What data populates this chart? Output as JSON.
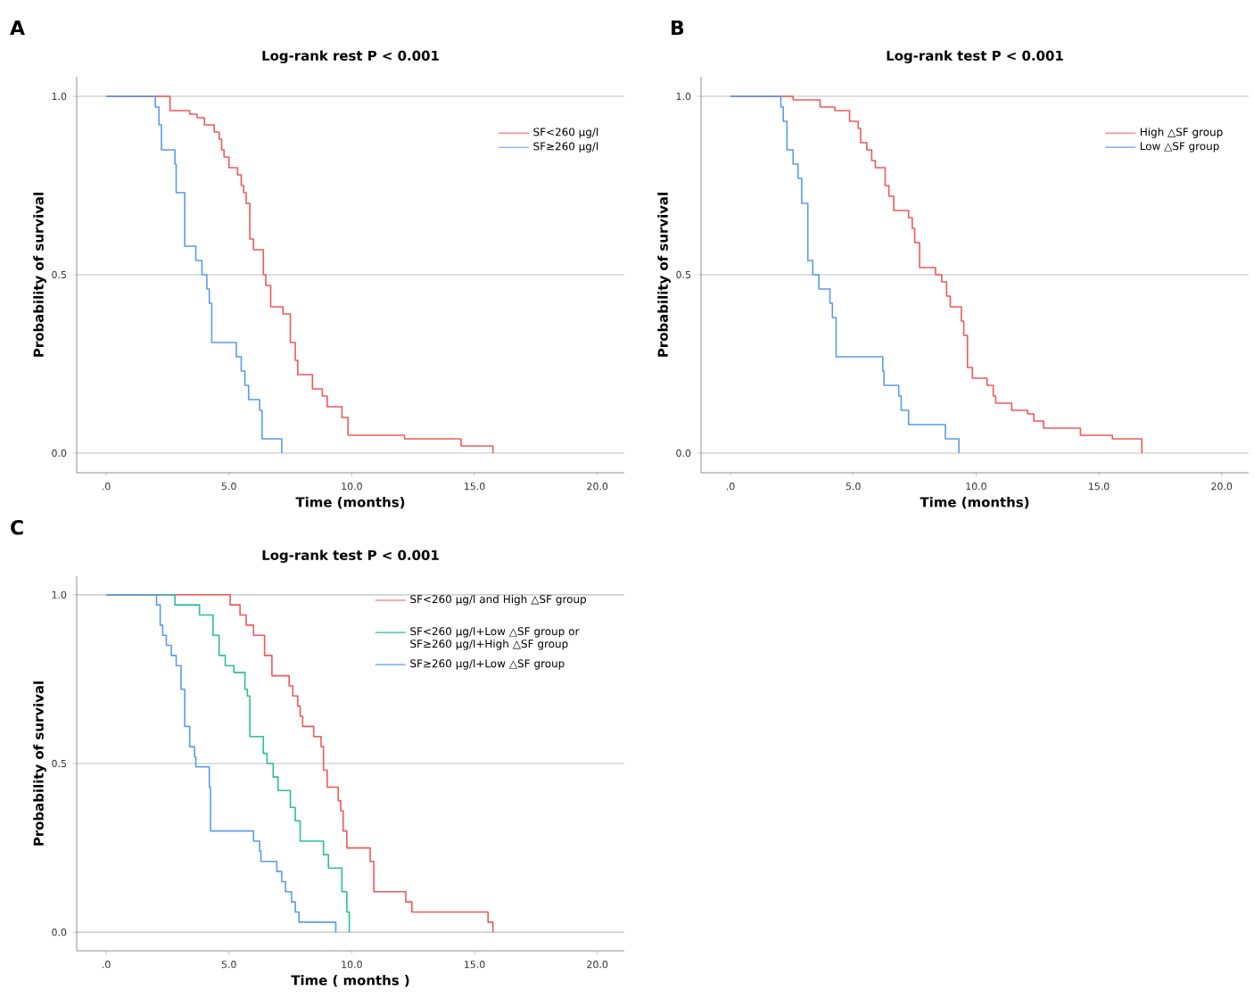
{
  "chart_data": [
    {
      "type": "step",
      "title": "Log-rank rest P < 0.001",
      "xlabel": "Time (months)",
      "ylabel": "Probability of survival",
      "annotations": [
        "A"
      ],
      "grid": "y",
      "legend": "top right",
      "xlim": [
        -1.2,
        21.1
      ],
      "ylim": [
        -0.055,
        1.055
      ],
      "xticks": [
        {
          "value": 0,
          "label": ".0"
        },
        {
          "value": 5,
          "label": "5.0"
        },
        {
          "value": 10,
          "label": "10.0"
        },
        {
          "value": 15,
          "label": "15.0"
        },
        {
          "value": 20,
          "label": "20.0"
        }
      ],
      "yticks": [
        {
          "value": 0,
          "label": "0.0"
        },
        {
          "value": 0.5,
          "label": "0.5"
        },
        {
          "value": 1,
          "label": "1.0"
        }
      ],
      "series": [
        {
          "name": "SF<260 μg/l",
          "color": "#f0595a",
          "x": [
            0,
            2.6,
            3.4,
            3.7,
            4.0,
            4.4,
            4.6,
            4.7,
            4.8,
            5.0,
            5.35,
            5.5,
            5.6,
            5.7,
            5.85,
            6.0,
            6.4,
            6.5,
            6.7,
            7.2,
            7.5,
            7.7,
            7.8,
            8.4,
            8.8,
            9.0,
            9.6,
            9.85,
            12.15,
            14.45,
            15.75
          ],
          "values": [
            1.0,
            0.96,
            0.95,
            0.94,
            0.92,
            0.9,
            0.88,
            0.85,
            0.83,
            0.8,
            0.78,
            0.75,
            0.73,
            0.7,
            0.6,
            0.57,
            0.5,
            0.47,
            0.41,
            0.39,
            0.31,
            0.26,
            0.22,
            0.18,
            0.16,
            0.13,
            0.1,
            0.05,
            0.04,
            0.02,
            0.0
          ]
        },
        {
          "name": "SF≥260 μg/l",
          "color": "#5b9bec",
          "x": [
            0,
            2.0,
            2.15,
            2.25,
            2.8,
            2.85,
            3.2,
            3.65,
            3.9,
            4.1,
            4.2,
            4.3,
            5.3,
            5.5,
            5.65,
            5.8,
            6.25,
            6.35,
            7.15
          ],
          "values": [
            1.0,
            0.97,
            0.92,
            0.85,
            0.81,
            0.73,
            0.58,
            0.54,
            0.5,
            0.46,
            0.42,
            0.31,
            0.27,
            0.23,
            0.19,
            0.15,
            0.12,
            0.04,
            0.0
          ]
        }
      ]
    },
    {
      "type": "step",
      "title": "Log-rank test P < 0.001",
      "xlabel": "Time (months)",
      "ylabel": "Probability of survival",
      "annotations": [
        "B"
      ],
      "grid": "y",
      "legend": "top right",
      "xlim": [
        -1.2,
        21.1
      ],
      "ylim": [
        -0.055,
        1.055
      ],
      "xticks": [
        {
          "value": 0,
          "label": ".0"
        },
        {
          "value": 5,
          "label": "5.0"
        },
        {
          "value": 10,
          "label": "10.0"
        },
        {
          "value": 15,
          "label": "15.0"
        },
        {
          "value": 20,
          "label": "20.0"
        }
      ],
      "yticks": [
        {
          "value": 0,
          "label": "0.0"
        },
        {
          "value": 0.5,
          "label": "0.5"
        },
        {
          "value": 1,
          "label": "1.0"
        }
      ],
      "series": [
        {
          "name": "High △SF group",
          "color": "#f0595a",
          "x": [
            0,
            2.55,
            3.65,
            4.25,
            4.85,
            5.2,
            5.3,
            5.55,
            5.75,
            5.9,
            6.3,
            6.45,
            6.65,
            7.25,
            7.4,
            7.5,
            7.7,
            8.35,
            8.6,
            8.8,
            8.95,
            9.4,
            9.5,
            9.65,
            9.85,
            10.45,
            10.7,
            10.8,
            11.45,
            12.1,
            12.35,
            12.75,
            14.25,
            15.55,
            16.75
          ],
          "values": [
            1.0,
            0.99,
            0.97,
            0.96,
            0.93,
            0.91,
            0.87,
            0.85,
            0.82,
            0.8,
            0.75,
            0.72,
            0.68,
            0.66,
            0.63,
            0.59,
            0.52,
            0.5,
            0.48,
            0.44,
            0.41,
            0.37,
            0.33,
            0.24,
            0.21,
            0.19,
            0.16,
            0.14,
            0.12,
            0.11,
            0.09,
            0.07,
            0.05,
            0.04,
            0.0
          ]
        },
        {
          "name": "Low △SF group",
          "color": "#5b9bec",
          "x": [
            0,
            2.05,
            2.15,
            2.3,
            2.55,
            2.75,
            2.9,
            3.15,
            3.35,
            3.6,
            4.05,
            4.15,
            4.3,
            6.2,
            6.25,
            6.85,
            6.95,
            7.25,
            8.75,
            9.3
          ],
          "values": [
            1.0,
            0.97,
            0.93,
            0.85,
            0.81,
            0.77,
            0.7,
            0.54,
            0.5,
            0.46,
            0.42,
            0.38,
            0.27,
            0.23,
            0.19,
            0.16,
            0.12,
            0.08,
            0.04,
            0.0
          ]
        }
      ]
    },
    {
      "type": "step",
      "title": "Log-rank test P < 0.001",
      "xlabel": "Time ( months )",
      "ylabel": "Probability of survival",
      "annotations": [
        "C"
      ],
      "grid": "y",
      "legend": "top right",
      "xlim": [
        -1.2,
        21.1
      ],
      "ylim": [
        -0.055,
        1.055
      ],
      "xticks": [
        {
          "value": 0,
          "label": ".0"
        },
        {
          "value": 5,
          "label": "5.0"
        },
        {
          "value": 10,
          "label": "10.0"
        },
        {
          "value": 15,
          "label": "15.0"
        },
        {
          "value": 20,
          "label": "20.0"
        }
      ],
      "yticks": [
        {
          "value": 0,
          "label": "0.0"
        },
        {
          "value": 0.5,
          "label": "0.5"
        },
        {
          "value": 1,
          "label": "1.0"
        }
      ],
      "series": [
        {
          "name": "SF<260 μg/l and High △SF group",
          "color": "#f0595a",
          "x": [
            0,
            5.05,
            5.45,
            5.7,
            6.0,
            6.45,
            6.75,
            7.45,
            7.6,
            7.8,
            7.9,
            8.0,
            8.45,
            8.75,
            8.85,
            9.0,
            9.45,
            9.55,
            9.65,
            9.8,
            10.75,
            10.9,
            12.2,
            12.45,
            15.55,
            15.75
          ],
          "values": [
            1.0,
            0.97,
            0.94,
            0.91,
            0.88,
            0.82,
            0.76,
            0.73,
            0.7,
            0.67,
            0.64,
            0.61,
            0.58,
            0.55,
            0.48,
            0.43,
            0.39,
            0.36,
            0.3,
            0.25,
            0.21,
            0.12,
            0.09,
            0.06,
            0.03,
            0.0
          ]
        },
        {
          "name": "SF<260 μg/l+Low △SF group or SF≥260 μg/l+High △SF group",
          "color": "#2bbf9b",
          "x": [
            0,
            2.8,
            3.8,
            4.35,
            4.6,
            4.85,
            5.2,
            5.65,
            5.75,
            5.85,
            6.4,
            6.55,
            6.8,
            7.0,
            7.5,
            7.7,
            7.9,
            8.85,
            9.05,
            9.6,
            9.8,
            9.9
          ],
          "values": [
            1.0,
            0.97,
            0.94,
            0.88,
            0.82,
            0.79,
            0.77,
            0.72,
            0.7,
            0.58,
            0.53,
            0.5,
            0.46,
            0.42,
            0.37,
            0.33,
            0.27,
            0.23,
            0.19,
            0.12,
            0.06,
            0.0
          ]
        },
        {
          "name": "SF≥260 μg/l+Low △SF group",
          "color": "#5b9bec",
          "x": [
            0,
            2.05,
            2.2,
            2.3,
            2.45,
            2.65,
            2.85,
            3.05,
            3.2,
            3.4,
            3.6,
            3.65,
            4.2,
            4.25,
            6.0,
            6.25,
            6.3,
            6.95,
            7.15,
            7.3,
            7.55,
            7.7,
            7.85,
            9.35
          ],
          "values": [
            1.0,
            0.97,
            0.91,
            0.88,
            0.85,
            0.82,
            0.79,
            0.72,
            0.61,
            0.55,
            0.52,
            0.49,
            0.43,
            0.3,
            0.27,
            0.24,
            0.21,
            0.18,
            0.15,
            0.12,
            0.09,
            0.06,
            0.03,
            0.0
          ]
        }
      ]
    }
  ]
}
